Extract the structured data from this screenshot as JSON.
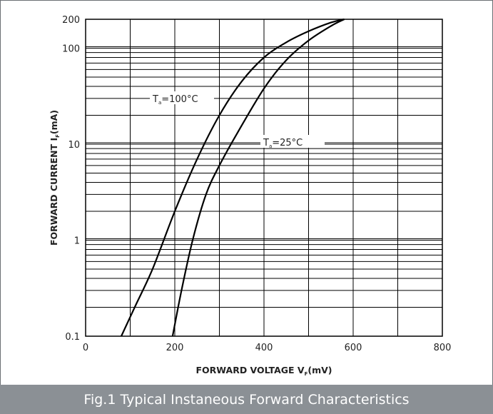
{
  "caption": "Fig.1 Typical Instaneous Forward Characteristics",
  "chart_data": {
    "type": "line",
    "title": "",
    "xlabel": "FORWARD VOLTAGE",
    "xlabel_symbol": "V",
    "xlabel_sub": "F",
    "xlabel_unit": "(mV)",
    "ylabel": "FORWARD CURRENT",
    "ylabel_symbol": "I",
    "ylabel_sub": "F",
    "ylabel_unit": "(mA)",
    "xlim": [
      0,
      800
    ],
    "ylim": [
      0.1,
      200
    ],
    "yscale": "log",
    "grid": true,
    "x_ticks": [
      "0",
      "200",
      "400",
      "600",
      "800"
    ],
    "y_ticks": [
      "0.1",
      "1",
      "10",
      "100",
      "200"
    ],
    "series": [
      {
        "name": "Ta=100°C",
        "label_main": "T",
        "label_sub": "a",
        "label_rest": "=100°C",
        "x": [
          80,
          110,
          150,
          200,
          250,
          300,
          350,
          400,
          450,
          500,
          550,
          580
        ],
        "y": [
          0.1,
          0.2,
          0.5,
          2.0,
          7.0,
          20,
          45,
          80,
          115,
          150,
          185,
          200
        ]
      },
      {
        "name": "Ta=25°C",
        "label_main": "T",
        "label_sub": "a",
        "label_rest": "=25°C",
        "x": [
          195,
          215,
          240,
          270,
          300,
          340,
          400,
          450,
          500,
          550,
          580
        ],
        "y": [
          0.1,
          0.3,
          1.0,
          3.0,
          6.0,
          13,
          38,
          75,
          120,
          170,
          200
        ]
      }
    ],
    "colors": {
      "line": "#000000",
      "grid": "#000000",
      "caption_bg": "#8b9095"
    }
  }
}
